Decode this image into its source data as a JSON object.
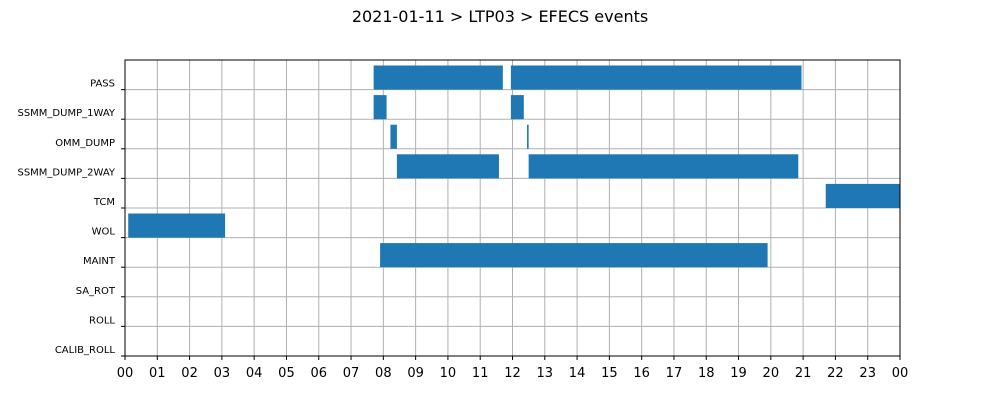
{
  "chart_data": {
    "type": "bar",
    "orientation": "horizontal-timeline",
    "title": "2021-01-11 > LTP03 > EFECS events",
    "xlabel": "",
    "ylabel": "",
    "x_unit": "hour",
    "xlim": [
      0,
      24
    ],
    "x_tick_labels": [
      "00",
      "01",
      "02",
      "03",
      "04",
      "05",
      "06",
      "07",
      "08",
      "09",
      "10",
      "11",
      "12",
      "13",
      "14",
      "15",
      "16",
      "17",
      "18",
      "19",
      "20",
      "21",
      "22",
      "23",
      "00"
    ],
    "categories": [
      "PASS",
      "SSMM_DUMP_1WAY",
      "OMM_DUMP",
      "SSMM_DUMP_2WAY",
      "TCM",
      "WOL",
      "MAINT",
      "SA_ROT",
      "ROLL",
      "CALIB_ROLL"
    ],
    "grid": true,
    "bar_color": "#1f77b4",
    "events": [
      {
        "category": "PASS",
        "start": 7.7,
        "end": 11.7
      },
      {
        "category": "PASS",
        "start": 11.95,
        "end": 20.95
      },
      {
        "category": "SSMM_DUMP_1WAY",
        "start": 7.7,
        "end": 8.1
      },
      {
        "category": "SSMM_DUMP_1WAY",
        "start": 11.95,
        "end": 12.35
      },
      {
        "category": "OMM_DUMP",
        "start": 8.22,
        "end": 8.42
      },
      {
        "category": "OMM_DUMP",
        "start": 12.45,
        "end": 12.5
      },
      {
        "category": "SSMM_DUMP_2WAY",
        "start": 8.42,
        "end": 11.58
      },
      {
        "category": "SSMM_DUMP_2WAY",
        "start": 12.5,
        "end": 20.85
      },
      {
        "category": "TCM",
        "start": 21.7,
        "end": 24.0
      },
      {
        "category": "WOL",
        "start": 0.1,
        "end": 3.1
      },
      {
        "category": "MAINT",
        "start": 7.9,
        "end": 19.9
      }
    ]
  }
}
